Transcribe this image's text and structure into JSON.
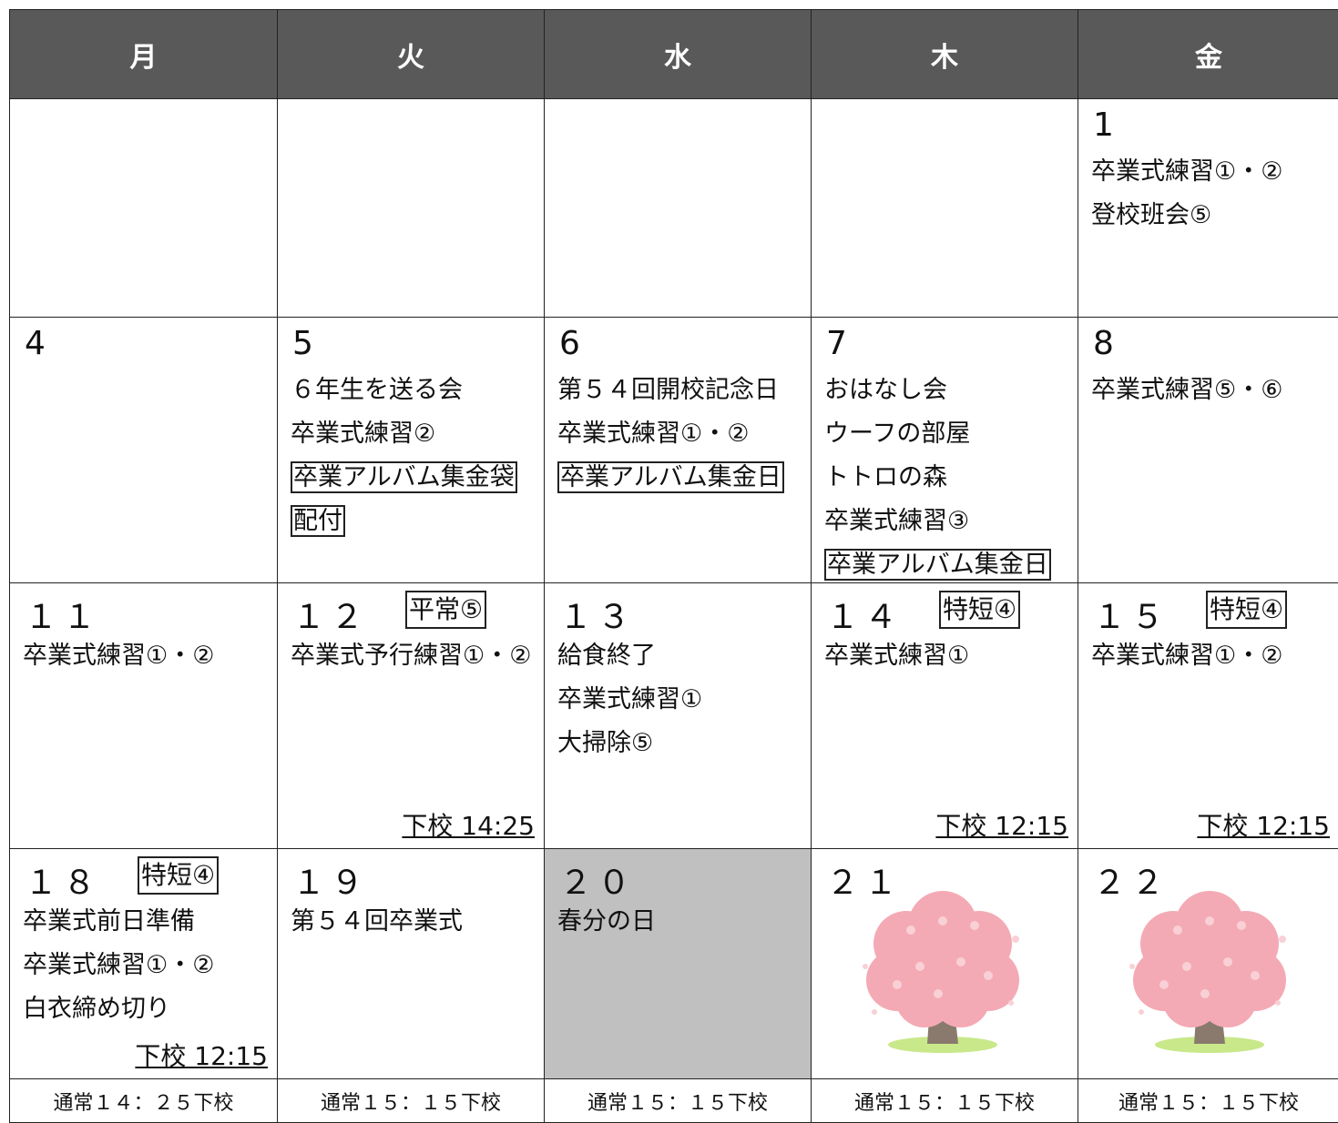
{
  "header": {
    "days": [
      "月",
      "火",
      "水",
      "木",
      "金"
    ]
  },
  "weeks": [
    [
      {},
      {},
      {},
      {},
      {
        "date": "1",
        "notes": [
          "卒業式練習①・②",
          "登校班会⑤"
        ]
      }
    ],
    [
      {
        "date": "4"
      },
      {
        "date": "5",
        "notes": [
          "６年生を送る会",
          "卒業式練習②"
        ],
        "boxed": [
          "卒業アルバム集金袋配付"
        ]
      },
      {
        "date": "6",
        "notes": [
          "第５４回開校記念日",
          "卒業式練習①・②"
        ],
        "boxed": [
          "卒業アルバム集金日"
        ]
      },
      {
        "date": "7",
        "notes": [
          "おはなし会",
          "ウーフの部屋",
          "トトロの森",
          "卒業式練習③"
        ],
        "boxed": [
          "卒業アルバム集金日"
        ]
      },
      {
        "date": "8",
        "notes": [
          "卒業式練習⑤・⑥"
        ]
      }
    ],
    [
      {
        "date": "１１",
        "notes": [
          "卒業式練習①・②"
        ]
      },
      {
        "date": "１２",
        "badge": "平常⑤",
        "notes": [
          "卒業式予行練習①・②"
        ],
        "dismissal": "下校 14:25"
      },
      {
        "date": "１３",
        "notes": [
          "給食終了",
          "卒業式練習①",
          "大掃除⑤"
        ]
      },
      {
        "date": "１４",
        "badge": "特短④",
        "notes": [
          "卒業式練習①"
        ],
        "dismissal": "下校 12:15"
      },
      {
        "date": "１５",
        "badge": "特短④",
        "notes": [
          "卒業式練習①・②"
        ],
        "dismissal": "下校 12:15"
      }
    ],
    [
      {
        "date": "１８",
        "badge": "特短④",
        "notes": [
          "卒業式前日準備",
          "卒業式練習①・②",
          "白衣締め切り"
        ],
        "dismissal": "下校 12:15"
      },
      {
        "date": "１９",
        "notes": [
          "第５４回卒業式"
        ]
      },
      {
        "date": "２０",
        "notes": [
          "春分の日"
        ],
        "shade": "#c0c0c0"
      },
      {
        "date": "２１"
      },
      {
        "date": "２２"
      }
    ]
  ],
  "footer": [
    "通常１４：２５下校",
    "通常１５：１５下校",
    "通常１５：１５下校",
    "通常１５：１５下校",
    "通常１５：１５下校"
  ]
}
